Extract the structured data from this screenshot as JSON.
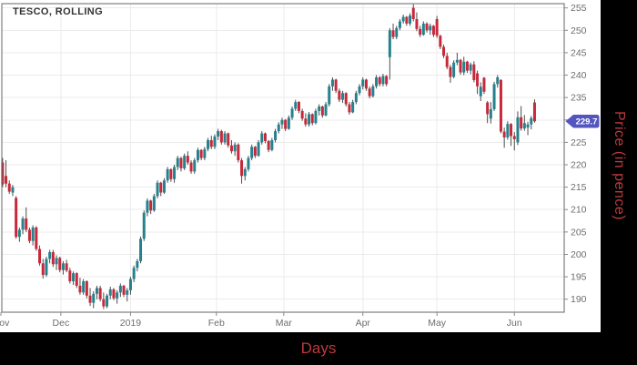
{
  "title": "TESCO, ROLLING",
  "colors": {
    "up": "#26818E",
    "down": "#C5293A",
    "wick": "#4d4d4d",
    "grid": "#ebebeb",
    "border": "#666666",
    "tick": "#888888",
    "tick_text": "#6e6e6e",
    "axis_label_text": "#BE3A3C",
    "badge_bg": "#5356BE",
    "badge_text": "#ffffff",
    "frame_bg": "#000000",
    "plot_bg": "#ffffff"
  },
  "y_axis": {
    "label": "Price (in pence)",
    "ticks": [
      190,
      195,
      200,
      205,
      210,
      215,
      220,
      225,
      230,
      235,
      240,
      245,
      250,
      255
    ],
    "hidden_tick_label": 230,
    "last_price": 229.7
  },
  "x_axis": {
    "label": "Days",
    "ticks": [
      {
        "label": "Nov",
        "index": -0.5
      },
      {
        "label": "Dec",
        "index": 17.3
      },
      {
        "label": "2019",
        "index": 38
      },
      {
        "label": "Feb",
        "index": 63.5
      },
      {
        "label": "Mar",
        "index": 83.5
      },
      {
        "label": "Apr",
        "index": 107
      },
      {
        "label": "May",
        "index": 129
      },
      {
        "label": "Jun",
        "index": 152
      }
    ]
  },
  "badge": {
    "value": "229.7"
  },
  "chart_data": {
    "type": "candlestick",
    "title": "TESCO, ROLLING",
    "xlabel": "Days",
    "ylabel": "Price (in pence)",
    "unit": "pence",
    "ylim": [
      187.1,
      255.95
    ],
    "x_range": "Nov 2018 - mid Jun 2019, daily candles",
    "ohlc_format": [
      "open",
      "high",
      "low",
      "close"
    ],
    "last_price": 229.7,
    "candles": [
      [
        220.5,
        221.5,
        215.0,
        215.6
      ],
      [
        217.5,
        221.0,
        215.0,
        215.8
      ],
      [
        215.8,
        216.5,
        213.5,
        214.0
      ],
      [
        213.8,
        215.5,
        213.0,
        215.0
      ],
      [
        212.6,
        213.0,
        203.5,
        203.9
      ],
      [
        203.9,
        206.0,
        202.8,
        205.5
      ],
      [
        205.5,
        208.5,
        204.5,
        208.0
      ],
      [
        208.0,
        210.5,
        205.0,
        205.5
      ],
      [
        205.5,
        206.0,
        202.5,
        203.0
      ],
      [
        203.0,
        206.5,
        202.0,
        206.0
      ],
      [
        206.0,
        206.3,
        200.8,
        201.2
      ],
      [
        201.2,
        202.0,
        197.5,
        198.0
      ],
      [
        198.0,
        199.0,
        194.6,
        195.4
      ],
      [
        195.4,
        199.5,
        195.0,
        199.0
      ],
      [
        199.0,
        201.0,
        198.0,
        200.5
      ],
      [
        200.5,
        201.0,
        197.2,
        197.8
      ],
      [
        197.8,
        199.8,
        196.5,
        199.2
      ],
      [
        199.2,
        199.5,
        196.0,
        196.5
      ],
      [
        196.5,
        198.5,
        195.5,
        198.0
      ],
      [
        198.0,
        198.8,
        196.0,
        196.4
      ],
      [
        196.4,
        197.0,
        193.5,
        194.0
      ],
      [
        194.0,
        196.2,
        193.2,
        195.8
      ],
      [
        195.8,
        196.0,
        192.5,
        193.0
      ],
      [
        193.0,
        194.8,
        191.0,
        191.5
      ],
      [
        191.5,
        194.5,
        191.0,
        194.0
      ],
      [
        194.0,
        194.2,
        190.2,
        190.8
      ],
      [
        190.8,
        192.5,
        188.5,
        189.2
      ],
      [
        189.2,
        191.8,
        188.0,
        191.2
      ],
      [
        191.2,
        193.0,
        190.0,
        192.5
      ],
      [
        192.5,
        193.0,
        189.5,
        190.0
      ],
      [
        190.0,
        191.5,
        187.8,
        188.4
      ],
      [
        188.4,
        191.2,
        188.0,
        190.8
      ],
      [
        190.8,
        192.8,
        190.0,
        192.2
      ],
      [
        192.2,
        192.5,
        189.8,
        190.2
      ],
      [
        190.2,
        192.0,
        189.0,
        191.5
      ],
      [
        191.5,
        193.5,
        190.5,
        193.0
      ],
      [
        193.0,
        193.2,
        190.5,
        191.0
      ],
      [
        191.0,
        192.5,
        189.5,
        192.0
      ],
      [
        192.0,
        195.0,
        191.0,
        194.5
      ],
      [
        194.5,
        197.5,
        193.8,
        197.0
      ],
      [
        197.0,
        199.0,
        196.2,
        198.5
      ],
      [
        198.5,
        204.0,
        198.0,
        203.5
      ],
      [
        203.5,
        209.8,
        203.0,
        209.3
      ],
      [
        209.3,
        212.5,
        208.5,
        212.0
      ],
      [
        212.0,
        212.2,
        209.0,
        209.8
      ],
      [
        209.8,
        213.5,
        209.5,
        213.0
      ],
      [
        213.0,
        216.5,
        212.5,
        216.0
      ],
      [
        216.0,
        216.2,
        213.0,
        213.8
      ],
      [
        213.8,
        217.0,
        213.5,
        216.5
      ],
      [
        216.5,
        219.5,
        216.0,
        219.0
      ],
      [
        219.0,
        219.2,
        216.2,
        216.8
      ],
      [
        216.8,
        220.0,
        216.0,
        219.5
      ],
      [
        219.5,
        222.0,
        218.8,
        221.5
      ],
      [
        221.5,
        221.8,
        218.5,
        219.2
      ],
      [
        219.2,
        222.5,
        218.8,
        222.0
      ],
      [
        222.0,
        223.0,
        220.0,
        220.5
      ],
      [
        220.5,
        221.0,
        218.0,
        218.5
      ],
      [
        218.5,
        221.5,
        218.0,
        221.0
      ],
      [
        221.0,
        223.8,
        220.5,
        223.3
      ],
      [
        223.3,
        223.5,
        221.0,
        221.5
      ],
      [
        221.5,
        224.0,
        221.0,
        223.5
      ],
      [
        223.5,
        226.0,
        223.0,
        225.5
      ],
      [
        225.5,
        226.5,
        223.5,
        224.0
      ],
      [
        224.0,
        226.8,
        223.5,
        226.3
      ],
      [
        226.3,
        228.0,
        225.5,
        227.5
      ],
      [
        227.5,
        227.8,
        224.5,
        225.0
      ],
      [
        225.0,
        227.5,
        224.5,
        227.0
      ],
      [
        227.0,
        227.2,
        223.8,
        224.3
      ],
      [
        224.3,
        225.5,
        222.5,
        223.0
      ],
      [
        223.0,
        225.0,
        222.0,
        224.5
      ],
      [
        224.5,
        224.8,
        220.5,
        221.0
      ],
      [
        221.0,
        221.5,
        215.8,
        217.5
      ],
      [
        217.5,
        219.5,
        216.5,
        219.0
      ],
      [
        219.0,
        222.0,
        218.5,
        221.5
      ],
      [
        221.5,
        224.5,
        221.0,
        224.0
      ],
      [
        224.0,
        224.2,
        221.5,
        222.0
      ],
      [
        222.0,
        225.5,
        221.8,
        225.0
      ],
      [
        225.0,
        227.5,
        224.5,
        227.0
      ],
      [
        227.0,
        227.2,
        224.8,
        225.3
      ],
      [
        225.3,
        225.5,
        222.8,
        223.3
      ],
      [
        223.3,
        226.0,
        223.0,
        225.5
      ],
      [
        225.5,
        228.0,
        225.0,
        227.5
      ],
      [
        227.5,
        229.5,
        227.0,
        229.0
      ],
      [
        229.0,
        230.5,
        228.0,
        230.0
      ],
      [
        230.0,
        230.2,
        227.5,
        228.0
      ],
      [
        228.0,
        231.0,
        227.8,
        230.5
      ],
      [
        230.5,
        233.0,
        230.0,
        232.5
      ],
      [
        232.5,
        234.5,
        232.0,
        234.0
      ],
      [
        234.0,
        234.2,
        231.5,
        232.0
      ],
      [
        232.0,
        232.5,
        229.8,
        230.3
      ],
      [
        230.3,
        231.5,
        228.5,
        229.0
      ],
      [
        229.0,
        231.8,
        228.5,
        231.3
      ],
      [
        231.3,
        231.5,
        228.8,
        229.3
      ],
      [
        229.3,
        232.5,
        229.0,
        232.0
      ],
      [
        232.0,
        233.5,
        231.0,
        233.0
      ],
      [
        233.0,
        233.2,
        230.5,
        231.0
      ],
      [
        231.0,
        234.0,
        230.8,
        233.5
      ],
      [
        233.5,
        238.0,
        233.0,
        237.5
      ],
      [
        237.5,
        239.5,
        236.5,
        239.0
      ],
      [
        239.0,
        239.2,
        236.0,
        236.5
      ],
      [
        236.5,
        237.0,
        234.0,
        234.5
      ],
      [
        234.5,
        236.5,
        233.8,
        236.0
      ],
      [
        236.0,
        236.2,
        233.0,
        233.5
      ],
      [
        233.5,
        234.0,
        231.2,
        231.7
      ],
      [
        231.7,
        234.5,
        231.5,
        234.0
      ],
      [
        234.0,
        236.5,
        233.5,
        236.0
      ],
      [
        236.0,
        238.0,
        235.5,
        237.5
      ],
      [
        237.5,
        239.5,
        236.8,
        239.0
      ],
      [
        239.0,
        239.2,
        236.5,
        237.0
      ],
      [
        237.0,
        237.5,
        234.8,
        235.3
      ],
      [
        235.3,
        238.0,
        235.0,
        237.5
      ],
      [
        237.5,
        240.0,
        237.0,
        239.5
      ],
      [
        239.5,
        239.8,
        237.5,
        238.0
      ],
      [
        238.0,
        240.3,
        237.5,
        239.8
      ],
      [
        239.8,
        240.0,
        237.5,
        238.0
      ],
      [
        244.0,
        250.5,
        239.0,
        250.0
      ],
      [
        250.0,
        251.5,
        248.0,
        248.5
      ],
      [
        248.5,
        251.0,
        248.0,
        250.5
      ],
      [
        250.5,
        252.5,
        250.0,
        252.0
      ],
      [
        252.0,
        253.5,
        251.5,
        253.0
      ],
      [
        253.0,
        253.2,
        251.0,
        251.5
      ],
      [
        251.5,
        253.8,
        251.0,
        253.3
      ],
      [
        255.0,
        255.8,
        252.0,
        252.5
      ],
      [
        252.5,
        254.0,
        249.8,
        250.3
      ],
      [
        250.3,
        251.0,
        248.5,
        249.0
      ],
      [
        249.0,
        252.0,
        248.8,
        251.5
      ],
      [
        251.5,
        251.8,
        249.5,
        250.0
      ],
      [
        250.0,
        251.5,
        249.0,
        251.0
      ],
      [
        251.0,
        251.2,
        248.5,
        249.0
      ],
      [
        252.5,
        253.2,
        248.3,
        248.8
      ],
      [
        248.8,
        249.0,
        245.8,
        246.3
      ],
      [
        246.3,
        246.8,
        243.8,
        244.3
      ],
      [
        244.3,
        245.0,
        241.3,
        241.8
      ],
      [
        241.8,
        242.3,
        238.3,
        239.6
      ],
      [
        239.6,
        243.3,
        239.3,
        242.8
      ],
      [
        242.8,
        245.0,
        242.2,
        243.4
      ],
      [
        243.4,
        243.6,
        240.1,
        240.6
      ],
      [
        240.6,
        244.1,
        240.0,
        243.0
      ],
      [
        243.0,
        243.2,
        240.5,
        241.0
      ],
      [
        241.0,
        242.8,
        240.2,
        242.4
      ],
      [
        242.4,
        243.1,
        238.4,
        238.9
      ],
      [
        240.4,
        241.0,
        235.8,
        237.5
      ],
      [
        235.3,
        238.4,
        234.2,
        237.4
      ],
      [
        239.4,
        239.6,
        235.8,
        236.3
      ],
      [
        233.9,
        234.2,
        229.3,
        231.3
      ],
      [
        230.3,
        234.0,
        229.2,
        232.4
      ],
      [
        232.4,
        238.5,
        232.0,
        238.0
      ],
      [
        238.0,
        240.0,
        237.2,
        239.5
      ],
      [
        238.9,
        239.1,
        227.0,
        227.4
      ],
      [
        227.4,
        228.3,
        223.8,
        226.1
      ],
      [
        226.1,
        229.7,
        225.6,
        229.1
      ],
      [
        229.1,
        229.3,
        224.2,
        226.4
      ],
      [
        226.4,
        227.3,
        223.2,
        225.7
      ],
      [
        225.0,
        231.9,
        224.4,
        230.6
      ],
      [
        230.6,
        233.1,
        227.6,
        228.1
      ],
      [
        228.1,
        231.1,
        227.6,
        229.3
      ],
      [
        228.3,
        229.6,
        226.6,
        229.0
      ],
      [
        229.0,
        230.9,
        227.9,
        230.4
      ],
      [
        233.9,
        234.6,
        229.4,
        229.7
      ]
    ]
  }
}
